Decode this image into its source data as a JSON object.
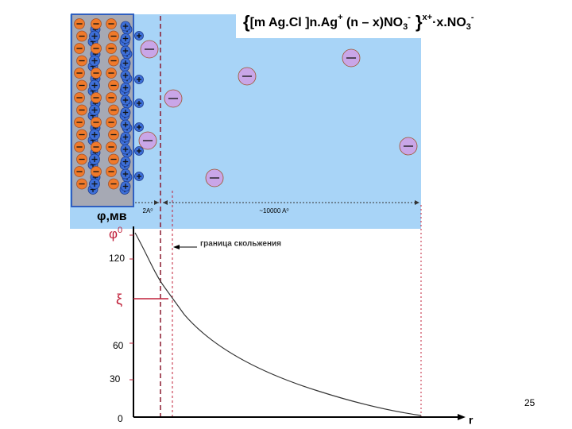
{
  "formula": {
    "parts": [
      {
        "text": "{",
        "kind": "brace"
      },
      {
        "text": "[m Ag.Cl ]n.Ag",
        "kind": "base"
      },
      {
        "text": "+",
        "kind": "sup"
      },
      {
        "text": " (n – x)NO",
        "kind": "base"
      },
      {
        "text": "3",
        "kind": "sub"
      },
      {
        "text": "-",
        "kind": "sup"
      },
      {
        "text": " }",
        "kind": "brace"
      },
      {
        "text": "x+",
        "kind": "sup"
      },
      {
        "text": "·x.NO",
        "kind": "base"
      },
      {
        "text": "3",
        "kind": "sub"
      },
      {
        "text": "-",
        "kind": "sup"
      }
    ]
  },
  "distances": {
    "inner": "2A⁰",
    "outer": "~10000 A⁰"
  },
  "axis": {
    "y_title": "φ,мв",
    "phi0": "φ",
    "phi0_sup": "0",
    "zeta": "ξ",
    "x_title": "r",
    "levels": [
      "120",
      "60",
      "30",
      "0"
    ]
  },
  "slip_label": "граница скольжения",
  "page_number": "25"
}
